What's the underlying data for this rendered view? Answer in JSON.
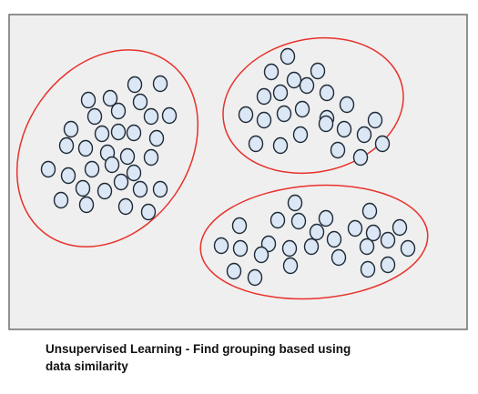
{
  "caption": {
    "line1": "Unsupervised Learning - Find grouping based using",
    "line2": "data similarity"
  },
  "colors": {
    "panel_fill": "#efefef",
    "panel_border": "#6f6f6f",
    "cluster_outline": "#e8312b",
    "point_fill": "#dbe7f4",
    "point_stroke": "#1f2a36"
  },
  "chart_data": {
    "type": "scatter",
    "clusters": [
      {
        "points": [
          [
            97,
            110
          ],
          [
            121,
            108
          ],
          [
            148,
            93
          ],
          [
            176,
            92
          ],
          [
            104,
            128
          ],
          [
            130,
            122
          ],
          [
            154,
            112
          ],
          [
            78,
            142
          ],
          [
            112,
            147
          ],
          [
            130,
            145
          ],
          [
            147,
            146
          ],
          [
            166,
            128
          ],
          [
            186,
            127
          ],
          [
            73,
            160
          ],
          [
            94,
            163
          ],
          [
            118,
            168
          ],
          [
            140,
            172
          ],
          [
            172,
            152
          ],
          [
            53,
            186
          ],
          [
            75,
            193
          ],
          [
            101,
            186
          ],
          [
            123,
            181
          ],
          [
            147,
            190
          ],
          [
            166,
            173
          ],
          [
            91,
            207
          ],
          [
            115,
            210
          ],
          [
            133,
            200
          ],
          [
            154,
            208
          ],
          [
            176,
            208
          ],
          [
            67,
            220
          ],
          [
            95,
            225
          ],
          [
            138,
            227
          ],
          [
            163,
            233
          ]
        ]
      },
      {
        "points": [
          [
            316,
            62
          ],
          [
            298,
            79
          ],
          [
            323,
            88
          ],
          [
            349,
            78
          ],
          [
            290,
            106
          ],
          [
            308,
            102
          ],
          [
            337,
            94
          ],
          [
            359,
            102
          ],
          [
            270,
            126
          ],
          [
            290,
            132
          ],
          [
            312,
            125
          ],
          [
            332,
            120
          ],
          [
            359,
            130
          ],
          [
            381,
            115
          ],
          [
            281,
            158
          ],
          [
            308,
            160
          ],
          [
            330,
            148
          ],
          [
            358,
            136
          ],
          [
            378,
            142
          ],
          [
            400,
            148
          ],
          [
            412,
            132
          ],
          [
            371,
            165
          ],
          [
            396,
            173
          ],
          [
            420,
            158
          ]
        ]
      },
      {
        "points": [
          [
            324,
            223
          ],
          [
            406,
            232
          ],
          [
            263,
            248
          ],
          [
            305,
            242
          ],
          [
            328,
            243
          ],
          [
            348,
            255
          ],
          [
            358,
            240
          ],
          [
            390,
            251
          ],
          [
            410,
            256
          ],
          [
            439,
            250
          ],
          [
            243,
            270
          ],
          [
            264,
            273
          ],
          [
            295,
            268
          ],
          [
            318,
            273
          ],
          [
            342,
            271
          ],
          [
            367,
            263
          ],
          [
            403,
            271
          ],
          [
            426,
            264
          ],
          [
            448,
            273
          ],
          [
            287,
            280
          ],
          [
            319,
            292
          ],
          [
            372,
            283
          ],
          [
            404,
            296
          ],
          [
            426,
            291
          ],
          [
            257,
            298
          ],
          [
            280,
            305
          ]
        ]
      }
    ]
  }
}
